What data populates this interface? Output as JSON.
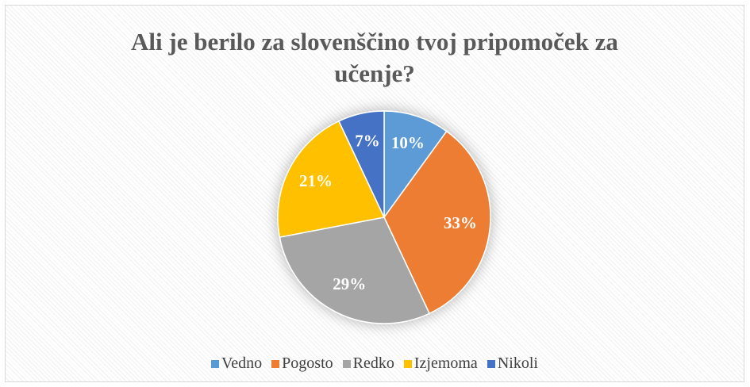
{
  "chart_data": {
    "type": "pie",
    "title": "Ali je berilo za slovenščino tvoj pripomoček za učenje?",
    "categories": [
      "Vedno",
      "Pogosto",
      "Redko",
      "Izjemoma",
      "Nikoli"
    ],
    "values": [
      10,
      33,
      29,
      21,
      7
    ],
    "value_labels": [
      "10%",
      "33%",
      "29%",
      "21%",
      "7%"
    ],
    "colors": [
      "#5b9bd5",
      "#ed7d31",
      "#a5a5a5",
      "#ffc000",
      "#4472c4"
    ],
    "legend": "bottom"
  }
}
